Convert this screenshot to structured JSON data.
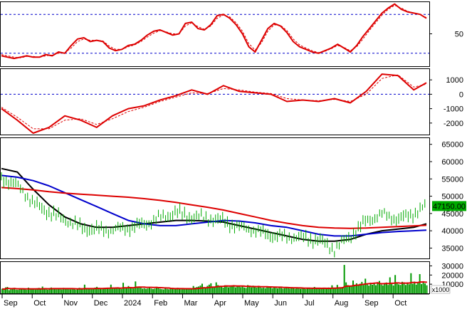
{
  "chart_data": [
    {
      "type": "line",
      "panel": "oscillator",
      "ylim": [
        0,
        100
      ],
      "yticks": [
        "50"
      ],
      "reference_lines": [
        80,
        20
      ],
      "reference_color": "#0000cc",
      "x": [
        0,
        4,
        8,
        12,
        16,
        20,
        24,
        28,
        32,
        36,
        40,
        44,
        48,
        52,
        56,
        60,
        64,
        68,
        72,
        76,
        80,
        84,
        88,
        92,
        96,
        100,
        104,
        108,
        112,
        116,
        120,
        124,
        128,
        132,
        136,
        140,
        144,
        148,
        152,
        156,
        160,
        164,
        168,
        172,
        176,
        180,
        184,
        188,
        192,
        196,
        200,
        204,
        208,
        212,
        216,
        220,
        224,
        228,
        232,
        236,
        240,
        244,
        248,
        252,
        256,
        260,
        264,
        268
      ],
      "series": [
        {
          "name": "main",
          "color": "#dd0000",
          "values": [
            16,
            14,
            12,
            14,
            16,
            14,
            14,
            18,
            16,
            22,
            20,
            32,
            42,
            44,
            38,
            40,
            38,
            28,
            24,
            26,
            32,
            34,
            40,
            48,
            54,
            56,
            52,
            48,
            50,
            66,
            68,
            58,
            56,
            64,
            78,
            80,
            74,
            64,
            50,
            30,
            22,
            40,
            58,
            66,
            62,
            52,
            38,
            30,
            26,
            22,
            20,
            24,
            28,
            34,
            28,
            22,
            32,
            46,
            58,
            70,
            82,
            90,
            96,
            88,
            84,
            82,
            80,
            74
          ]
        },
        {
          "name": "signal",
          "color": "#dd0000",
          "dash": true,
          "values": [
            18,
            16,
            14,
            13,
            15,
            15,
            14,
            16,
            17,
            20,
            21,
            28,
            38,
            42,
            40,
            40,
            39,
            31,
            26,
            26,
            30,
            33,
            38,
            45,
            51,
            55,
            53,
            50,
            50,
            62,
            67,
            61,
            57,
            62,
            74,
            79,
            76,
            67,
            54,
            35,
            25,
            36,
            54,
            64,
            63,
            55,
            42,
            33,
            28,
            24,
            21,
            23,
            27,
            32,
            29,
            24,
            30,
            42,
            55,
            67,
            79,
            88,
            94,
            90,
            85,
            82,
            80,
            75
          ]
        }
      ]
    },
    {
      "type": "line",
      "panel": "momentum",
      "ylim": [
        -2800,
        1800
      ],
      "yticks": [
        "1000",
        "0",
        "-1000",
        "-2000"
      ],
      "reference_lines": [
        0
      ],
      "reference_color": "#0000cc",
      "x": [
        0,
        10,
        20,
        30,
        40,
        50,
        60,
        70,
        80,
        90,
        100,
        110,
        120,
        130,
        140,
        150,
        160,
        170,
        180,
        190,
        200,
        210,
        220,
        230,
        240,
        250,
        260,
        268
      ],
      "series": [
        {
          "name": "main",
          "color": "#dd0000",
          "values": [
            -1000,
            -1800,
            -2700,
            -2300,
            -1500,
            -1800,
            -2300,
            -1500,
            -1000,
            -800,
            -400,
            -100,
            300,
            0,
            600,
            200,
            100,
            0,
            -500,
            -400,
            -500,
            -300,
            -600,
            200,
            1400,
            1300,
            300,
            800
          ]
        },
        {
          "name": "signal",
          "color": "#dd0000",
          "dash": true,
          "values": [
            -900,
            -1600,
            -2400,
            -2400,
            -1800,
            -1700,
            -2100,
            -1700,
            -1200,
            -900,
            -500,
            -200,
            100,
            50,
            400,
            300,
            150,
            50,
            -300,
            -400,
            -450,
            -350,
            -500,
            0,
            1100,
            1350,
            500,
            700
          ]
        }
      ]
    },
    {
      "type": "line",
      "panel": "price",
      "ylim": [
        32000,
        67000
      ],
      "yticks": [
        "65000",
        "60000",
        "55000",
        "50000",
        "45000",
        "40000",
        "35000"
      ],
      "last_value_label": "47150.00",
      "last_value_color": "#00aa00",
      "x": [
        0,
        10,
        20,
        30,
        40,
        50,
        60,
        70,
        80,
        90,
        100,
        110,
        120,
        130,
        140,
        150,
        160,
        170,
        180,
        190,
        200,
        210,
        220,
        230,
        240,
        250,
        260,
        268
      ],
      "series": [
        {
          "name": "price",
          "color": "#00aa00",
          "values": [
            55500,
            53000,
            48000,
            45500,
            43000,
            41000,
            40500,
            40000,
            41000,
            42000,
            43500,
            45500,
            44000,
            43500,
            43000,
            41000,
            40000,
            39000,
            38000,
            38000,
            37500,
            34500,
            38500,
            43000,
            44500,
            43500,
            45000,
            47150
          ]
        },
        {
          "name": "ma_short",
          "color": "#000000",
          "values": [
            58000,
            57000,
            52000,
            47500,
            44000,
            42000,
            41000,
            41000,
            41500,
            42000,
            42500,
            43000,
            43000,
            42800,
            42500,
            41500,
            40500,
            39500,
            38500,
            37500,
            37000,
            37000,
            37500,
            39000,
            40000,
            40500,
            41000,
            42000
          ]
        },
        {
          "name": "ma_mid",
          "color": "#0000cc",
          "values": [
            56000,
            55500,
            54500,
            53000,
            51000,
            49000,
            47000,
            45000,
            43000,
            42000,
            41500,
            41500,
            42000,
            42500,
            43000,
            42800,
            42300,
            41500,
            41000,
            40000,
            39000,
            38500,
            38500,
            39000,
            39500,
            39800,
            40000,
            40200
          ]
        },
        {
          "name": "ma_long",
          "color": "#dd0000",
          "values": [
            52500,
            52200,
            51800,
            51300,
            50900,
            50600,
            50300,
            50000,
            49700,
            49300,
            48800,
            48200,
            47500,
            46800,
            46000,
            45000,
            44000,
            43000,
            42200,
            41500,
            41000,
            40800,
            40700,
            40800,
            41000,
            41200,
            41400,
            41600
          ]
        }
      ]
    },
    {
      "type": "bar",
      "panel": "volume",
      "ylim": [
        0,
        35000
      ],
      "yticks": [
        "30000",
        "20000",
        "10000"
      ],
      "unit": "x1000",
      "bar_color": "#009900",
      "ma_color": "#dd0000",
      "values": [
        5000,
        4000,
        6500,
        7000,
        3500,
        4500,
        5200,
        6000,
        4000,
        3800,
        5500,
        4700,
        5000,
        4200,
        3900,
        6200,
        4800,
        5000,
        4500,
        4100,
        5600,
        6000,
        4900,
        7400,
        5300,
        4600,
        4000,
        5800,
        6400,
        5100,
        4800,
        4400,
        5000,
        4700,
        4200,
        6000,
        5200,
        4900,
        4500,
        4300,
        5100,
        4600,
        4000,
        5400,
        6100,
        4900,
        4500,
        9500,
        5200,
        4800,
        5600,
        4500,
        5000,
        6300,
        7100,
        5400,
        4800,
        4600,
        5900,
        6200,
        5500,
        4900,
        9500,
        5100,
        6000,
        6500,
        5800,
        5200,
        4700,
        11500,
        5600,
        6000,
        8000,
        6400,
        5900,
        5300,
        13000,
        6800,
        7500,
        6200,
        5100,
        5600,
        4900,
        5400,
        6000,
        5200,
        4700,
        5100,
        5900,
        6400,
        5000,
        4600,
        4300,
        5500,
        4800,
        4400,
        5200,
        4900,
        4700,
        5100,
        6000,
        5300,
        4400,
        5000,
        4800,
        5500,
        4600,
        4300,
        5200,
        8000,
        6200,
        7000,
        7500,
        8500,
        10500,
        6900,
        6000,
        8200,
        9500,
        11000,
        7000,
        6500,
        12000,
        9000,
        8000,
        7000,
        6200,
        8800,
        7400,
        6600,
        7200,
        8000,
        9000,
        6500,
        7400,
        8100,
        6800,
        7800,
        6400,
        5900,
        9000,
        7000,
        6500,
        8400,
        7600,
        6200,
        8200,
        6600,
        5800,
        6200,
        5600,
        7400,
        6800,
        6200,
        5500,
        7000,
        6100,
        5400,
        6600,
        5800,
        5200,
        5600,
        6300,
        5700,
        5200,
        6400,
        5600,
        5000,
        5800,
        5300,
        4900,
        5600,
        5100,
        4700,
        5900,
        5200,
        4800,
        5500,
        7000,
        6000,
        5200,
        4900,
        5800,
        6200,
        5100,
        4700,
        6400,
        5500,
        8800,
        6000,
        5400,
        9200,
        6100,
        5600,
        7000,
        31000,
        12000,
        9000,
        7500,
        8200,
        14000,
        9500,
        11000,
        8800,
        10500,
        12500,
        9000,
        16000,
        10000,
        8500,
        11500,
        9400,
        10800,
        8900,
        12000,
        13500,
        9600,
        8700,
        10400,
        11800,
        9200,
        17500,
        10200,
        8600,
        20000,
        11200,
        9800,
        9200,
        12600,
        10600,
        9100,
        11400,
        9900,
        22000,
        10400,
        12800,
        9600,
        11900,
        21000,
        10200,
        13000,
        10800,
        8800
      ]
    }
  ],
  "x_axis": {
    "months": [
      "Sep",
      "Oct",
      "Nov",
      "Dec",
      "2024",
      "Feb",
      "Mar",
      "Apr",
      "May",
      "Jun",
      "Jul",
      "Aug",
      "Sep",
      "Oct"
    ]
  }
}
